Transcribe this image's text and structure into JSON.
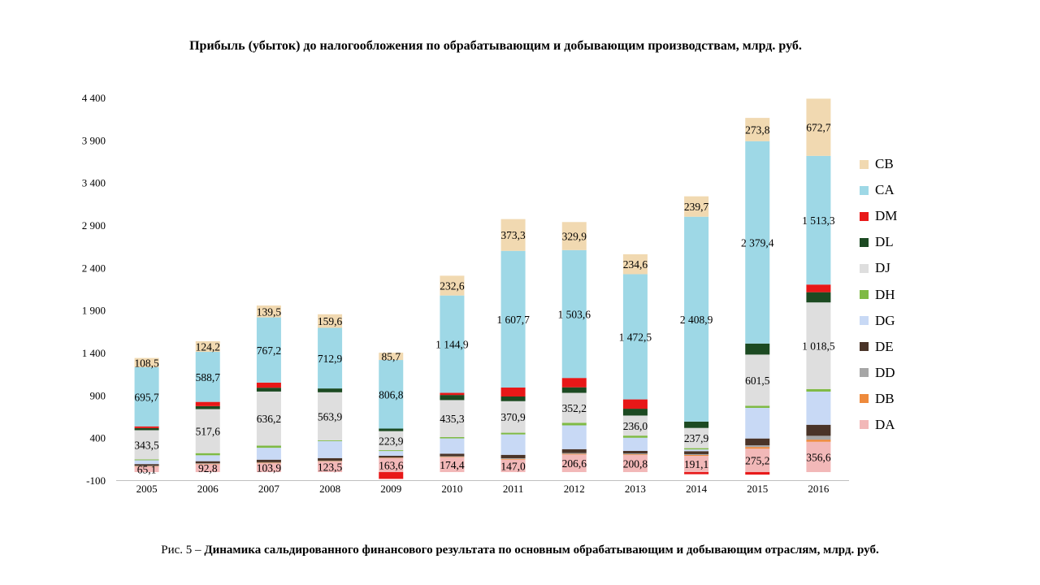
{
  "chart_data": {
    "type": "bar",
    "stacked": true,
    "title": "Прибыль (убыток) до налогообложения по обрабатывающим и добывающим производствам, млрд. руб.",
    "ylim": [
      -100,
      4400
    ],
    "yticks": [
      -100,
      400,
      900,
      1400,
      1900,
      2400,
      2900,
      3400,
      3900,
      4400
    ],
    "ytick_labels": [
      "-100",
      "400",
      "900",
      "1 400",
      "1 900",
      "2 400",
      "2 900",
      "3 400",
      "3 900",
      "4 400"
    ],
    "categories": [
      "2005",
      "2006",
      "2007",
      "2008",
      "2009",
      "2010",
      "2011",
      "2012",
      "2013",
      "2014",
      "2015",
      "2016"
    ],
    "legend_position": "right",
    "grid": false,
    "series": [
      {
        "name": "DA",
        "color": "#f2b8b8",
        "values": [
          65.1,
          92.8,
          103.9,
          123.5,
          163.6,
          174.4,
          147.0,
          206.6,
          200.8,
          191.1,
          275.2,
          356.6
        ],
        "labels": [
          "65,1",
          "92,8",
          "103,9",
          "123,5",
          "163,6",
          "174,4",
          "147,0",
          "206,6",
          "200,8",
          "191,1",
          "275,2",
          "356,6"
        ]
      },
      {
        "name": "DB",
        "color": "#ee8a3c",
        "values": [
          4,
          5,
          6,
          5,
          4,
          6,
          8,
          8,
          8,
          10,
          20,
          25
        ]
      },
      {
        "name": "DD",
        "color": "#a6a6a6",
        "values": [
          5,
          5,
          6,
          6,
          5,
          6,
          8,
          10,
          10,
          10,
          20,
          45
        ]
      },
      {
        "name": "DE",
        "color": "#4a3428",
        "values": [
          20,
          25,
          30,
          30,
          20,
          30,
          40,
          45,
          30,
          35,
          80,
          130
        ]
      },
      {
        "name": "DG",
        "color": "#c8d9f5",
        "values": [
          45,
          70,
          140,
          200,
          55,
          180,
          240,
          280,
          155,
          20,
          360,
          390
        ]
      },
      {
        "name": "DH",
        "color": "#7fba45",
        "values": [
          10,
          25,
          25,
          10,
          10,
          15,
          20,
          30,
          25,
          15,
          25,
          30
        ]
      },
      {
        "name": "DJ",
        "color": "#dedede",
        "values": [
          343.5,
          517.6,
          636.2,
          563.9,
          223.9,
          435.3,
          370.9,
          352.2,
          236.0,
          237.9,
          601.5,
          1018.5
        ],
        "labels": [
          "343,5",
          "517,6",
          "636,2",
          "563,9",
          "223,9",
          "435,3",
          "370,9",
          "352,2",
          "236,0",
          "237,9",
          "601,5",
          "1 018,5"
        ]
      },
      {
        "name": "DL",
        "color": "#1c4a22",
        "values": [
          25,
          35,
          45,
          45,
          30,
          60,
          55,
          65,
          80,
          75,
          130,
          120
        ]
      },
      {
        "name": "DM",
        "color": "#e81818",
        "values": [
          20,
          50,
          60,
          0,
          -80,
          25,
          105,
          110,
          110,
          -25,
          -30,
          90
        ]
      },
      {
        "name": "CA",
        "color": "#9ed8e6",
        "values": [
          695.7,
          588.7,
          767.2,
          712.9,
          806.8,
          1144.9,
          1607.7,
          1503.6,
          1472.5,
          2408.9,
          2379.4,
          1513.3
        ],
        "labels": [
          "695,7",
          "588,7",
          "767,2",
          "712,9",
          "806,8",
          "1 144,9",
          "1 607,7",
          "1 503,6",
          "1 472,5",
          "2 408,9",
          "2 379,4",
          "1 513,3"
        ]
      },
      {
        "name": "CB",
        "color": "#f1d9b1",
        "values": [
          108.5,
          124.2,
          139.5,
          159.6,
          85.7,
          232.6,
          373.3,
          329.9,
          234.6,
          239.7,
          273.8,
          672.7
        ],
        "labels": [
          "108,5",
          "124,2",
          "139,5",
          "159,6",
          "85,7",
          "232,6",
          "373,3",
          "329,9",
          "234,6",
          "239,7",
          "273,8",
          "672,7"
        ]
      }
    ],
    "legend_order": [
      "CB",
      "CA",
      "DM",
      "DL",
      "DJ",
      "DH",
      "DG",
      "DE",
      "DD",
      "DB",
      "DA"
    ]
  },
  "caption": {
    "prefix": "Рис. 5 – ",
    "text": "Динамика сальдированного финансового результата по основным обрабатывающим и добывающим отраслям, млрд. руб."
  }
}
